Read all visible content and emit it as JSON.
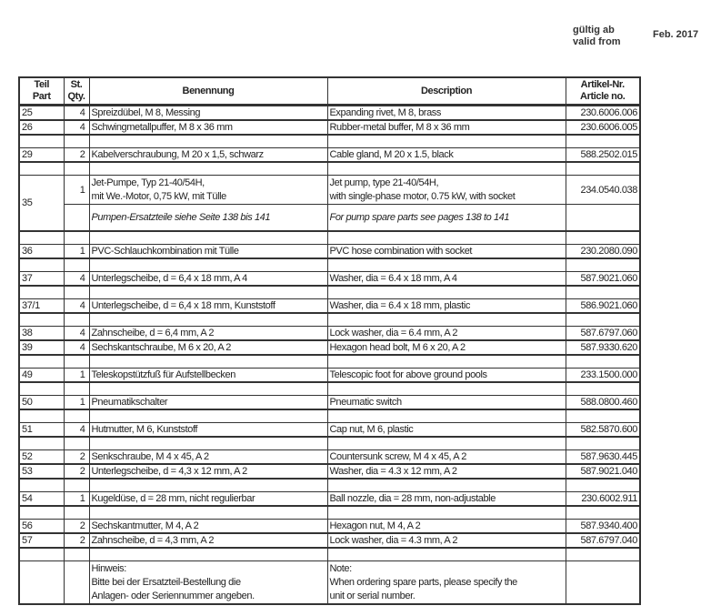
{
  "validity": {
    "label_de": "gültig ab",
    "label_en": "valid from",
    "date": "Feb.  2017"
  },
  "header": {
    "part_de": "Teil",
    "part_en": "Part",
    "qty_de": "St.",
    "qty_en": "Qty.",
    "name_de": "Benennung",
    "description": "Description",
    "article_de": "Artikel-Nr.",
    "article_en": "Article no."
  },
  "rows": [
    {
      "part": "25",
      "qty": "4",
      "de": "Spreizdübel, M 8, Messing",
      "en": "Expanding rivet, M 8, brass",
      "article": "230.6006.006"
    },
    {
      "part": "26",
      "qty": "4",
      "de": "Schwingmetallpuffer, M 8 x 36 mm",
      "en": "Rubber-metal buffer, M 8 x 36 mm",
      "article": "230.6006.005"
    },
    {
      "blank": true
    },
    {
      "part": "29",
      "qty": "2",
      "de": "Kabelverschraubung, M 20 x 1,5, schwarz",
      "en": "Cable gland, M 20 x 1.5, black",
      "article": "588.2502.015"
    },
    {
      "blank": true
    },
    {
      "part": "35",
      "qty": "1",
      "de": "Jet-Pumpe, Typ 21-40/54H,",
      "de2": "mit We.-Motor, 0,75 kW, mit Tülle",
      "en": "Jet pump, type 21-40/54H,",
      "en2": "with single-phase motor, 0.75 kW, with socket",
      "article": "234.0540.038",
      "note_de": "Pumpen-Ersatzteile siehe Seite 138 bis 141",
      "note_en": "For pump spare parts see pages 138 to 141"
    },
    {
      "blank": true
    },
    {
      "part": "36",
      "qty": "1",
      "de": "PVC-Schlauchkombination mit Tülle",
      "en": "PVC hose combination with socket",
      "article": "230.2080.090"
    },
    {
      "blank": true
    },
    {
      "part": "37",
      "qty": "4",
      "de": "Unterlegscheibe, d = 6,4 x 18 mm, A 4",
      "en": "Washer, dia = 6.4 x 18 mm, A 4",
      "article": "587.9021.060"
    },
    {
      "blank": true
    },
    {
      "part": "37/1",
      "qty": "4",
      "de": "Unterlegscheibe, d = 6,4 x 18 mm, Kunststoff",
      "en": "Washer, dia = 6.4 x 18 mm, plastic",
      "article": "586.9021.060"
    },
    {
      "blank": true
    },
    {
      "part": "38",
      "qty": "4",
      "de": "Zahnscheibe, d = 6,4 mm, A 2",
      "en": "Lock washer, dia = 6.4 mm, A 2",
      "article": "587.6797.060"
    },
    {
      "part": "39",
      "qty": "4",
      "de": "Sechskantschraube, M 6 x 20, A 2",
      "en": "Hexagon head bolt, M 6 x 20, A 2",
      "article": "587.9330.620"
    },
    {
      "blank": true
    },
    {
      "part": "49",
      "qty": "1",
      "de": "Teleskopstützfuß für Aufstellbecken",
      "en": "Telescopic foot for above ground pools",
      "article": "233.1500.000"
    },
    {
      "blank": true
    },
    {
      "part": "50",
      "qty": "1",
      "de": "Pneumatikschalter",
      "en": "Pneumatic switch",
      "article": "588.0800.460"
    },
    {
      "blank": true
    },
    {
      "part": "51",
      "qty": "4",
      "de": "Hutmutter, M 6, Kunststoff",
      "en": "Cap nut, M 6, plastic",
      "article": "582.5870.600"
    },
    {
      "blank": true
    },
    {
      "part": "52",
      "qty": "2",
      "de": "Senkschraube, M 4 x 45, A 2",
      "en": "Countersunk screw, M 4 x 45, A 2",
      "article": "587.9630.445"
    },
    {
      "part": "53",
      "qty": "2",
      "de": "Unterlegscheibe, d = 4,3 x 12 mm, A 2",
      "en": "Washer, dia = 4.3 x 12 mm, A 2",
      "article": "587.9021.040"
    },
    {
      "blank": true
    },
    {
      "part": "54",
      "qty": "1",
      "de": "Kugeldüse, d = 28 mm, nicht regulierbar",
      "en": "Ball nozzle, dia = 28 mm, non-adjustable",
      "article": "230.6002.911"
    },
    {
      "blank": true
    },
    {
      "part": "56",
      "qty": "2",
      "de": "Sechskantmutter, M 4, A 2",
      "en": "Hexagon nut, M 4, A 2",
      "article": "587.9340.400"
    },
    {
      "part": "57",
      "qty": "2",
      "de": "Zahnscheibe, d = 4,3 mm, A 2",
      "en": "Lock washer, dia = 4.3 mm, A 2",
      "article": "587.6797.040"
    },
    {
      "blank": true
    }
  ],
  "footer_note": {
    "de": [
      "Hinweis:",
      "Bitte bei der Ersatzteil-Bestellung die",
      "Anlagen- oder Seriennummer angeben."
    ],
    "en": [
      "Note:",
      "When ordering spare parts, please specify the",
      "unit or serial number."
    ]
  }
}
